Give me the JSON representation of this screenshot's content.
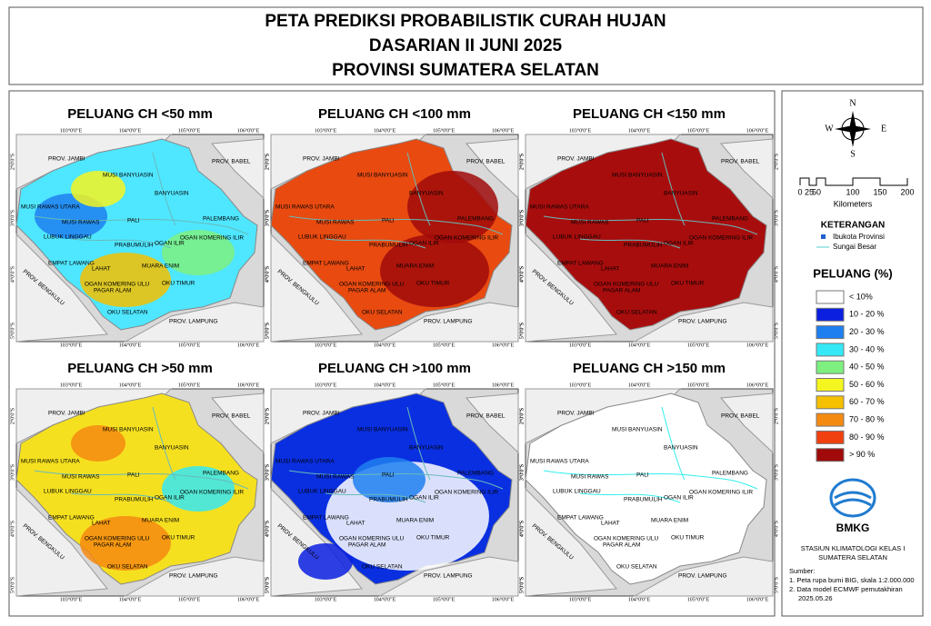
{
  "header": {
    "lines": [
      "PETA PREDIKSI PROBABILISTIK CURAH HUJAN",
      "DASARIAN II JUNI 2025",
      "PROVINSI SUMATERA SELATAN"
    ]
  },
  "panels": [
    {
      "title": "PELUANG CH <50 mm",
      "fill": "#4fe6ff"
    },
    {
      "title": "PELUANG CH <100 mm",
      "fill": "#e84a10"
    },
    {
      "title": "PELUANG CH <150 mm",
      "fill": "#a80d0d"
    },
    {
      "title": "PELUANG CH >50 mm",
      "fill": "#f5e020"
    },
    {
      "title": "PELUANG CH >100 mm",
      "fill": "#0a2fe0"
    },
    {
      "title": "PELUANG CH >150 mm",
      "fill": "#ffffff"
    }
  ],
  "map": {
    "lon_labels": [
      "103°0'0\"E",
      "104°0'0\"E",
      "105°0'0\"E",
      "106°0'0\"E"
    ],
    "lat_labels": [
      "2°0'0\"S",
      "3°0'0\"S",
      "4°0'0\"S",
      "5°0'0\"S"
    ],
    "places": [
      "PROV. JAMBI",
      "MUSI BANYUASIN",
      "PROV. BABEL",
      "BANYUASIN",
      "MUSI RAWAS UTARA",
      "MUSI RAWAS",
      "PALEMBANG",
      "PALI",
      "LUBUK LINGGAU",
      "PRABUMULIH",
      "OGAN ILIR",
      "OGAN KOMERING ILIR",
      "EMPAT LAWANG",
      "LAHAT",
      "MUARA ENIM",
      "OGAN KOMERING ULU",
      "OKU TIMUR",
      "PAGAR ALAM",
      "OKU SELATAN",
      "PROV. LAMPUNG",
      "PROV. BENGKULU"
    ]
  },
  "legend": {
    "compass": [
      "N",
      "S",
      "E",
      "W"
    ],
    "scale": [
      "0",
      "25",
      "50",
      "100",
      "150",
      "200"
    ],
    "scale_unit": "Kilometers",
    "keterangan": "KETERANGAN",
    "symbols": [
      "Ibukota Provinsi",
      "Sungai Besar"
    ],
    "peluang_title": "PELUANG (%)",
    "classes": [
      {
        "label": "< 10%",
        "color": "#ffffff"
      },
      {
        "label": "10 - 20 %",
        "color": "#0a1fe0"
      },
      {
        "label": "20 - 30 %",
        "color": "#1e7ff0"
      },
      {
        "label": "30 - 40 %",
        "color": "#35e8f5"
      },
      {
        "label": "40 - 50 %",
        "color": "#7ef080"
      },
      {
        "label": "50 - 60 %",
        "color": "#f5f520"
      },
      {
        "label": "60 - 70 %",
        "color": "#f5c000"
      },
      {
        "label": "70 - 80 %",
        "color": "#f58a10"
      },
      {
        "label": "80 - 90 %",
        "color": "#f04010"
      },
      {
        "label": "> 90 %",
        "color": "#a00a0a"
      }
    ],
    "logo": "BMKG",
    "station": [
      "STASIUN KLIMATOLOGI KELAS I",
      "SUMATERA SELATAN"
    ],
    "source_title": "Sumber:",
    "sources": [
      "1. Peta rupa bumi BIG, skala 1:2.000.000",
      "2. Data model ECMWF pemutakhiran",
      "2025.05.26"
    ]
  }
}
